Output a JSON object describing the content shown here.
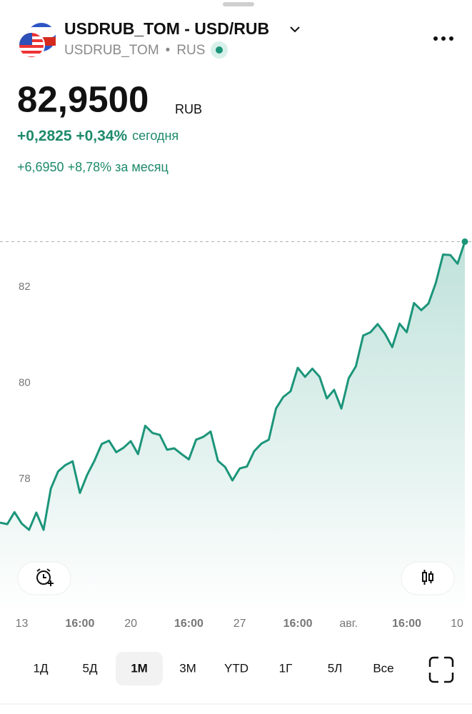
{
  "header": {
    "title": "USDRUB_TOM - USD/RUB",
    "ticker": "USDRUB_TOM",
    "exchange": "RUS"
  },
  "price": {
    "value": "82,9500",
    "currency": "RUB"
  },
  "change": {
    "today": "+0,2825 +0,34%",
    "today_label": "сегодня",
    "month": "+6,6950 +8,78% за месяц"
  },
  "chart_data": {
    "type": "line",
    "color": "#1c957a",
    "values": [
      77.09,
      77.06,
      77.31,
      77.07,
      76.94,
      77.3,
      76.94,
      77.8,
      78.16,
      78.29,
      78.37,
      77.71,
      78.09,
      78.38,
      78.73,
      78.8,
      78.56,
      78.65,
      78.79,
      78.52,
      79.11,
      78.96,
      78.92,
      78.61,
      78.64,
      78.52,
      78.41,
      78.82,
      78.88,
      78.99,
      78.38,
      78.25,
      77.97,
      78.22,
      78.26,
      78.58,
      78.74,
      78.82,
      79.47,
      79.71,
      79.83,
      80.32,
      80.13,
      80.3,
      80.13,
      79.68,
      79.86,
      79.47,
      80.1,
      80.35,
      80.99,
      81.06,
      81.23,
      81.03,
      80.75,
      81.24,
      81.06,
      81.67,
      81.52,
      81.66,
      82.09,
      82.68,
      82.67,
      82.49,
      82.95
    ],
    "xlim": [
      0,
      64
    ],
    "xticks": [
      {
        "value": 3,
        "label": "13"
      },
      {
        "value": 11,
        "label": "16:00"
      },
      {
        "value": 18,
        "label": "20"
      },
      {
        "value": 26,
        "label": "16:00"
      },
      {
        "value": 33,
        "label": "27"
      },
      {
        "value": 41,
        "label": "16:00"
      },
      {
        "value": 48,
        "label": "авг."
      },
      {
        "value": 56,
        "label": "16:00"
      },
      {
        "value": 63,
        "label": "10"
      }
    ],
    "ylim": [
      75.2,
      83.7
    ],
    "yticks": [
      78,
      80,
      82
    ]
  },
  "periods": {
    "items": [
      "1Д",
      "5Д",
      "1М",
      "3М",
      "YTD",
      "1Г",
      "5Л",
      "Все"
    ],
    "selected": 2
  }
}
